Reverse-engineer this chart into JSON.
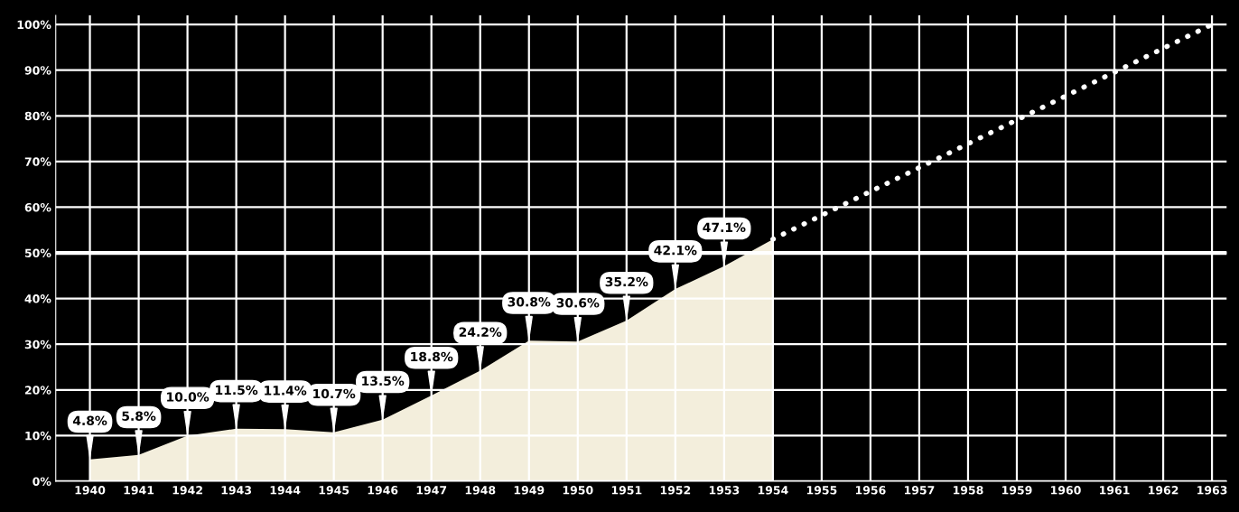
{
  "chart_data": {
    "type": "area",
    "x": [
      1940,
      1941,
      1942,
      1943,
      1944,
      1945,
      1946,
      1947,
      1948,
      1949,
      1950,
      1951,
      1952,
      1953,
      1954
    ],
    "series": [
      {
        "color": "#f3eedc",
        "values": [
          4.8,
          5.8,
          10.0,
          11.5,
          11.4,
          10.7,
          13.5,
          18.8,
          24.2,
          30.8,
          30.6,
          35.2,
          42.1,
          47.1,
          53
        ],
        "value_labels": [
          "4.8%",
          "5.8%",
          "10.0%",
          "11.5%",
          "11.4%",
          "10.7%",
          "13.5%",
          "18.8%",
          "24.2%",
          "30.8%",
          "30.6%",
          "35.2%",
          "42.1%",
          "47.1%",
          null
        ]
      },
      {
        "type": "line",
        "color": "#ffffff",
        "line_style": "dotted",
        "x": [
          1954,
          1963
        ],
        "values": [
          53,
          100
        ]
      }
    ],
    "xlim": [
      1939.3,
      1963.3
    ],
    "ylim": [
      0,
      102
    ],
    "xticks": [
      1940,
      1941,
      1942,
      1943,
      1944,
      1945,
      1946,
      1947,
      1948,
      1949,
      1950,
      1951,
      1952,
      1953,
      1954,
      1955,
      1956,
      1957,
      1958,
      1959,
      1960,
      1961,
      1962,
      1963
    ],
    "yticks": [
      {
        "value": 0,
        "label": "0%"
      },
      {
        "value": 10,
        "label": "10%"
      },
      {
        "value": 20,
        "label": "20%"
      },
      {
        "value": 30,
        "label": "30%"
      },
      {
        "value": 40,
        "label": "40%"
      },
      {
        "value": 50,
        "label": "50%"
      },
      {
        "value": 60,
        "label": "60%"
      },
      {
        "value": 70,
        "label": "70%"
      },
      {
        "value": 80,
        "label": "80%"
      },
      {
        "value": 90,
        "label": "90%"
      },
      {
        "value": 100,
        "label": "100%"
      }
    ],
    "ref_lines": [
      {
        "axis": "y",
        "value": 50,
        "color": "#ffffff"
      }
    ],
    "grid": true
  }
}
